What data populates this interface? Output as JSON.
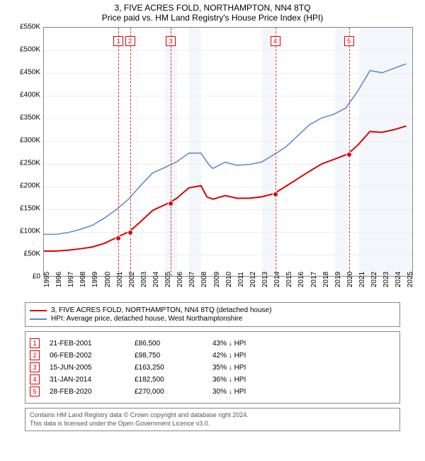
{
  "title": "3, FIVE ACRES FOLD, NORTHAMPTON, NN4 8TQ",
  "subtitle": "Price paid vs. HM Land Registry's House Price Index (HPI)",
  "chart": {
    "type": "line",
    "background_color": "#ffffff",
    "grid_color": "#eeeeee",
    "border_color": "#888888",
    "ylim": [
      0,
      550000
    ],
    "ytick_step": 50000,
    "ytick_labels": [
      "£0",
      "£50K",
      "£100K",
      "£150K",
      "£200K",
      "£250K",
      "£300K",
      "£350K",
      "£400K",
      "£450K",
      "£500K",
      "£550K"
    ],
    "x_years": [
      1995,
      1996,
      1997,
      1998,
      1999,
      2000,
      2001,
      2002,
      2003,
      2004,
      2005,
      2006,
      2007,
      2008,
      2009,
      2010,
      2011,
      2012,
      2013,
      2014,
      2015,
      2016,
      2017,
      2018,
      2019,
      2020,
      2021,
      2022,
      2023,
      2024,
      2025
    ],
    "xlim": [
      1995,
      2025.5
    ],
    "shaded_years": [
      [
        2005,
        2006
      ],
      [
        2007,
        2008
      ],
      [
        2013,
        2014
      ],
      [
        2019,
        2020
      ],
      [
        2021,
        2025.5
      ]
    ],
    "series": [
      {
        "name": "price_paid",
        "label": "3, FIVE ACRES FOLD, NORTHAMPTON, NN4 8TQ (detached house)",
        "color": "#dd0000",
        "line_width": 2,
        "points": [
          [
            1995,
            55000
          ],
          [
            1996,
            55000
          ],
          [
            1997,
            57000
          ],
          [
            1998,
            60000
          ],
          [
            1999,
            64000
          ],
          [
            2000,
            72000
          ],
          [
            2001.14,
            86500
          ],
          [
            2002.1,
            98750
          ],
          [
            2003,
            120000
          ],
          [
            2004,
            145000
          ],
          [
            2005.46,
            163250
          ],
          [
            2006,
            172000
          ],
          [
            2007,
            195000
          ],
          [
            2008,
            200000
          ],
          [
            2008.5,
            175000
          ],
          [
            2009,
            170000
          ],
          [
            2010,
            178000
          ],
          [
            2011,
            172000
          ],
          [
            2012,
            172000
          ],
          [
            2013,
            175000
          ],
          [
            2014.08,
            182500
          ],
          [
            2015,
            198000
          ],
          [
            2016,
            215000
          ],
          [
            2017,
            232000
          ],
          [
            2018,
            248000
          ],
          [
            2019,
            258000
          ],
          [
            2020.16,
            270000
          ],
          [
            2021,
            290000
          ],
          [
            2022,
            320000
          ],
          [
            2023,
            318000
          ],
          [
            2024,
            324000
          ],
          [
            2025,
            332000
          ]
        ]
      },
      {
        "name": "hpi",
        "label": "HPI: Average price, detached house, West Northamptonshire",
        "color": "#5588cc",
        "line_width": 1.5,
        "points": [
          [
            1995,
            92000
          ],
          [
            1996,
            92000
          ],
          [
            1997,
            96000
          ],
          [
            1998,
            103000
          ],
          [
            1999,
            112000
          ],
          [
            2000,
            128000
          ],
          [
            2001,
            147000
          ],
          [
            2002,
            170000
          ],
          [
            2003,
            200000
          ],
          [
            2004,
            228000
          ],
          [
            2005,
            240000
          ],
          [
            2006,
            253000
          ],
          [
            2007,
            272000
          ],
          [
            2008,
            272000
          ],
          [
            2008.7,
            245000
          ],
          [
            2009,
            238000
          ],
          [
            2010,
            252000
          ],
          [
            2011,
            245000
          ],
          [
            2012,
            247000
          ],
          [
            2013,
            252000
          ],
          [
            2014,
            268000
          ],
          [
            2015,
            285000
          ],
          [
            2016,
            310000
          ],
          [
            2017,
            335000
          ],
          [
            2018,
            350000
          ],
          [
            2019,
            358000
          ],
          [
            2020,
            372000
          ],
          [
            2021,
            410000
          ],
          [
            2022,
            455000
          ],
          [
            2023,
            450000
          ],
          [
            2024,
            460000
          ],
          [
            2025,
            470000
          ]
        ]
      }
    ],
    "sale_markers": [
      {
        "n": "1",
        "year": 2001.14,
        "price": 86500,
        "marker_y": 12
      },
      {
        "n": "2",
        "year": 2002.1,
        "price": 98750,
        "marker_y": 12
      },
      {
        "n": "3",
        "year": 2005.46,
        "price": 163250,
        "marker_y": 12
      },
      {
        "n": "4",
        "year": 2014.08,
        "price": 182500,
        "marker_y": 12
      },
      {
        "n": "5",
        "year": 2020.16,
        "price": 270000,
        "marker_y": 12
      }
    ]
  },
  "legend": {
    "rows": [
      {
        "color": "#dd0000",
        "label": "3, FIVE ACRES FOLD, NORTHAMPTON, NN4 8TQ (detached house)"
      },
      {
        "color": "#5588cc",
        "label": "HPI: Average price, detached house, West Northamptonshire"
      }
    ]
  },
  "sales_table": {
    "rows": [
      {
        "n": "1",
        "date": "21-FEB-2001",
        "price": "£86,500",
        "diff": "43% ↓ HPI"
      },
      {
        "n": "2",
        "date": "06-FEB-2002",
        "price": "£98,750",
        "diff": "42% ↓ HPI"
      },
      {
        "n": "3",
        "date": "15-JUN-2005",
        "price": "£163,250",
        "diff": "35% ↓ HPI"
      },
      {
        "n": "4",
        "date": "31-JAN-2014",
        "price": "£182,500",
        "diff": "36% ↓ HPI"
      },
      {
        "n": "5",
        "date": "28-FEB-2020",
        "price": "£270,000",
        "diff": "30% ↓ HPI"
      }
    ]
  },
  "footer": {
    "line1": "Contains HM Land Registry data © Crown copyright and database right 2024.",
    "line2": "This data is licensed under the Open Government Licence v3.0."
  }
}
